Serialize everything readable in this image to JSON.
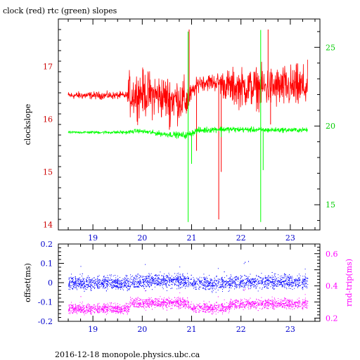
{
  "title": "clock (red) rtc (green) slopes",
  "footer": "2016-12-18 monopole.physics.ubc.ca",
  "colors": {
    "clock": "#ff0000",
    "rtc": "#00ff00",
    "offset": "#0000ff",
    "rndtrip": "#ff00ff",
    "axes": "#000000"
  },
  "chart_data": [
    {
      "type": "line",
      "title": "clock (red) rtc (green) slopes",
      "x_ticks": [
        19,
        20,
        21,
        22,
        23
      ],
      "xlim": [
        18.3,
        23.6
      ],
      "ylabel": "clockslope",
      "ylim": [
        13.9,
        17.9
      ],
      "y_ticks": [
        14,
        15,
        16,
        17
      ],
      "ylabel_right": "",
      "ylim_right": [
        13.4,
        26.8
      ],
      "y_ticks_right": [
        15,
        20,
        25
      ],
      "series": [
        {
          "name": "clock",
          "axis": "left",
          "color": "#ff0000",
          "baseline": [
            [
              18.5,
              16.45
            ],
            [
              19.7,
              16.45
            ],
            [
              20.0,
              16.5
            ],
            [
              20.5,
              16.4
            ],
            [
              20.9,
              16.35
            ],
            [
              21.15,
              16.7
            ],
            [
              21.55,
              16.7
            ],
            [
              21.8,
              16.6
            ],
            [
              22.5,
              16.6
            ],
            [
              23.35,
              16.6
            ]
          ],
          "noise": [
            [
              18.5,
              0.05
            ],
            [
              19.7,
              0.05
            ],
            [
              19.72,
              0.3
            ],
            [
              20.9,
              0.3
            ],
            [
              21.0,
              0.1
            ],
            [
              21.5,
              0.12
            ],
            [
              21.8,
              0.25
            ],
            [
              23.35,
              0.3
            ]
          ],
          "spikes": [
            [
              20.95,
              17.7
            ],
            [
              21.55,
              14.1
            ],
            [
              21.6,
              15.0
            ],
            [
              22.55,
              17.7
            ],
            [
              22.6,
              15.9
            ],
            [
              20.55,
              15.8
            ],
            [
              21.1,
              15.4
            ]
          ]
        },
        {
          "name": "rtc",
          "axis": "right",
          "color": "#00ff00",
          "baseline": [
            [
              18.5,
              19.6
            ],
            [
              19.7,
              19.6
            ],
            [
              19.9,
              19.7
            ],
            [
              20.4,
              19.5
            ],
            [
              20.9,
              19.4
            ],
            [
              21.1,
              19.7
            ],
            [
              21.5,
              19.8
            ],
            [
              22.5,
              19.75
            ],
            [
              23.35,
              19.75
            ]
          ],
          "noise": [
            [
              18.5,
              0.05
            ],
            [
              19.7,
              0.08
            ],
            [
              20.9,
              0.15
            ],
            [
              23.35,
              0.1
            ]
          ],
          "spikes": [
            [
              20.93,
              26.0
            ],
            [
              20.93,
              13.9
            ],
            [
              21.0,
              17.6
            ],
            [
              22.4,
              26.1
            ],
            [
              22.4,
              13.9
            ],
            [
              22.45,
              17.2
            ],
            [
              21.6,
              19.3
            ]
          ]
        }
      ]
    },
    {
      "type": "scatter",
      "x_ticks": [
        19,
        20,
        21,
        22,
        23
      ],
      "xlim": [
        18.3,
        23.6
      ],
      "ylabel": "offset(ms)",
      "ylim": [
        -0.2,
        0.2
      ],
      "y_ticks": [
        -0.2,
        -0.1,
        0,
        0.1,
        0.2
      ],
      "y_tick_labels": [
        "-0.2",
        "-0.1",
        "0",
        "0.1",
        "0.2"
      ],
      "ylabel_right": "rnd-trip(ms)",
      "ylim_right": [
        0.18,
        0.66
      ],
      "y_ticks_right": [
        0.2,
        0.3,
        0.4,
        0.5,
        0.6
      ],
      "y_tick_labels_right": [
        "0.2",
        "0.4",
        "0.6"
      ],
      "series": [
        {
          "name": "offset",
          "axis": "left",
          "color": "#0000ff",
          "baseline": [
            [
              18.5,
              0.0
            ],
            [
              19.7,
              0.0
            ],
            [
              20.0,
              0.01
            ],
            [
              20.9,
              0.01
            ],
            [
              21.0,
              0.0
            ],
            [
              21.5,
              -0.005
            ],
            [
              21.8,
              0.005
            ],
            [
              23.35,
              0.005
            ]
          ],
          "spread": 0.025
        },
        {
          "name": "rndtrip",
          "axis": "right",
          "color": "#ff00ff",
          "baseline": [
            [
              18.5,
              0.26
            ],
            [
              19.7,
              0.26
            ],
            [
              19.75,
              0.295
            ],
            [
              20.9,
              0.295
            ],
            [
              21.0,
              0.265
            ],
            [
              21.7,
              0.265
            ],
            [
              21.8,
              0.29
            ],
            [
              23.35,
              0.29
            ]
          ],
          "spread": 0.022
        }
      ]
    }
  ]
}
